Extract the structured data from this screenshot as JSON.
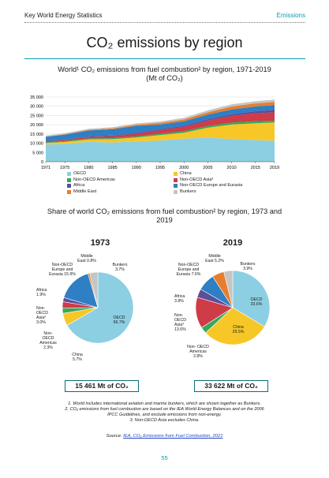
{
  "header": {
    "left": "Key World Energy Statistics",
    "right": "Emissions"
  },
  "page_title": "CO₂ emissions by region",
  "chart1": {
    "title_line1": "World¹ CO₂ emissions from fuel combustion² by region, 1971-2019",
    "title_line2": "(Mt of CO₂)"
  },
  "legend": [
    {
      "label": "OECD",
      "color": "#8ccfe3"
    },
    {
      "label": "China",
      "color": "#f7c728"
    },
    {
      "label": "Non-OECD Americas",
      "color": "#34a95a"
    },
    {
      "label": "Non-OECD Asia³",
      "color": "#cf3b47"
    },
    {
      "label": "Africa",
      "color": "#5b4e9a"
    },
    {
      "label": "Non-OECD Europe and Eurasia",
      "color": "#2e7fc4"
    },
    {
      "label": "Middle East",
      "color": "#e77e2e"
    },
    {
      "label": "Bunkers",
      "color": "#c5c5c5"
    }
  ],
  "share_title_line1": "Share of world CO₂ emissions from fuel combustion² by region, 1973 and",
  "share_title_line2": "2019",
  "pie1973": {
    "year": "1973",
    "total": "15 461 Mt of CO₂",
    "labels": {
      "oecd": "OECD 66.7%",
      "china": "China 5.7%",
      "americas": "Non- OECD Americas 2.3%",
      "asia": "Non- OECD Asia³ 3.0%",
      "africa": "Africa 1.9%",
      "europe": "Non-OECD Europe and Eurasia 15.9%",
      "mideast": "Middle East 0.8%",
      "bunkers": "Bunkers 3.7%"
    }
  },
  "pie2019": {
    "year": "2019",
    "total": "33 622 Mt of CO₂",
    "labels": {
      "oecd": "OECD 33.6%",
      "china": "China 29.5%",
      "americas": "Non- OECD Americas 2.8%",
      "asia": "Non- OECD Asia³ 13.6%",
      "africa": "Africa 3.8%",
      "europe": "Non-OECD Europe and Eurasia 7.6%",
      "mideast": "Middle East 5.2%",
      "bunkers": "Bunkers 3.9%"
    }
  },
  "footnotes": [
    "1. World includes international aviation and marine bunkers, which are shown together as Bunkers.",
    "2. CO₂ emissions from fuel combustion are based on the IEA World Energy Balances and on the 2006",
    "IPCC Guidelines, and exclude emissions from non-energy.",
    "3. Non-OECD Asia excludes China."
  ],
  "source": {
    "prefix": "Source: ",
    "link": "IEA, CO₂ Emissions from Fuel Combustion, 2021"
  },
  "page_number": "55",
  "chart_data": [
    {
      "type": "area",
      "title": "World¹ CO₂ emissions from fuel combustion² by region, 1971-2019 (Mt of CO₂)",
      "x_ticks": [
        "1971",
        "1975",
        "1980",
        "1985",
        "1990",
        "1995",
        "2000",
        "2005",
        "2010",
        "2015",
        "2019"
      ],
      "ylim": [
        0,
        35000
      ],
      "y_ticks": [
        "0",
        "5 000",
        "10 000",
        "15 000",
        "20 000",
        "25 000",
        "30 000",
        "35 000"
      ],
      "grid": true,
      "legend_position": "bottom",
      "x": [
        1971,
        1975,
        1980,
        1985,
        1990,
        1995,
        2000,
        2005,
        2010,
        2015,
        2019
      ],
      "series": [
        {
          "name": "OECD",
          "color": "#8ccfe3",
          "values": [
            9300,
            9700,
            10700,
            10400,
            11000,
            11500,
            12500,
            13000,
            12300,
            11700,
            11300
          ]
        },
        {
          "name": "China",
          "color": "#f7c728",
          "values": [
            800,
            1000,
            1400,
            1800,
            2100,
            2900,
            3200,
            5400,
            7800,
            9100,
            9900
          ]
        },
        {
          "name": "Non-OECD Americas",
          "color": "#34a95a",
          "values": [
            350,
            420,
            540,
            560,
            600,
            720,
            850,
            930,
            1080,
            1150,
            940
          ]
        },
        {
          "name": "Non-OECD Asia³",
          "color": "#cf3b47",
          "values": [
            450,
            560,
            760,
            1000,
            1400,
            1900,
            2300,
            2900,
            3600,
            4200,
            4600
          ]
        },
        {
          "name": "Africa",
          "color": "#5b4e9a",
          "values": [
            270,
            320,
            400,
            470,
            530,
            580,
            650,
            790,
            940,
            1150,
            1280
          ]
        },
        {
          "name": "Non-OECD Europe and Eurasia",
          "color": "#2e7fc4",
          "values": [
            2300,
            2700,
            3100,
            3300,
            3800,
            2600,
            2400,
            2500,
            2600,
            2600,
            2550
          ]
        },
        {
          "name": "Middle East",
          "color": "#e77e2e",
          "values": [
            110,
            200,
            330,
            500,
            580,
            800,
            950,
            1200,
            1550,
            1700,
            1750
          ]
        },
        {
          "name": "Bunkers",
          "color": "#c5c5c5",
          "values": [
            550,
            580,
            620,
            640,
            700,
            760,
            900,
            1050,
            1150,
            1200,
            1300
          ]
        }
      ]
    },
    {
      "type": "pie",
      "title": "1973",
      "categories": [
        "OECD",
        "China",
        "Non-OECD Americas",
        "Non-OECD Asia³",
        "Africa",
        "Non-OECD Europe and Eurasia",
        "Middle East",
        "Bunkers"
      ],
      "values": [
        66.7,
        5.7,
        2.3,
        3.0,
        1.9,
        15.9,
        0.8,
        3.7
      ]
    },
    {
      "type": "pie",
      "title": "2019",
      "categories": [
        "OECD",
        "China",
        "Non-OECD Americas",
        "Non-OECD Asia³",
        "Africa",
        "Non-OECD Europe and Eurasia",
        "Middle East",
        "Bunkers"
      ],
      "values": [
        33.6,
        29.5,
        2.8,
        13.6,
        3.8,
        7.6,
        5.2,
        3.9
      ]
    }
  ]
}
